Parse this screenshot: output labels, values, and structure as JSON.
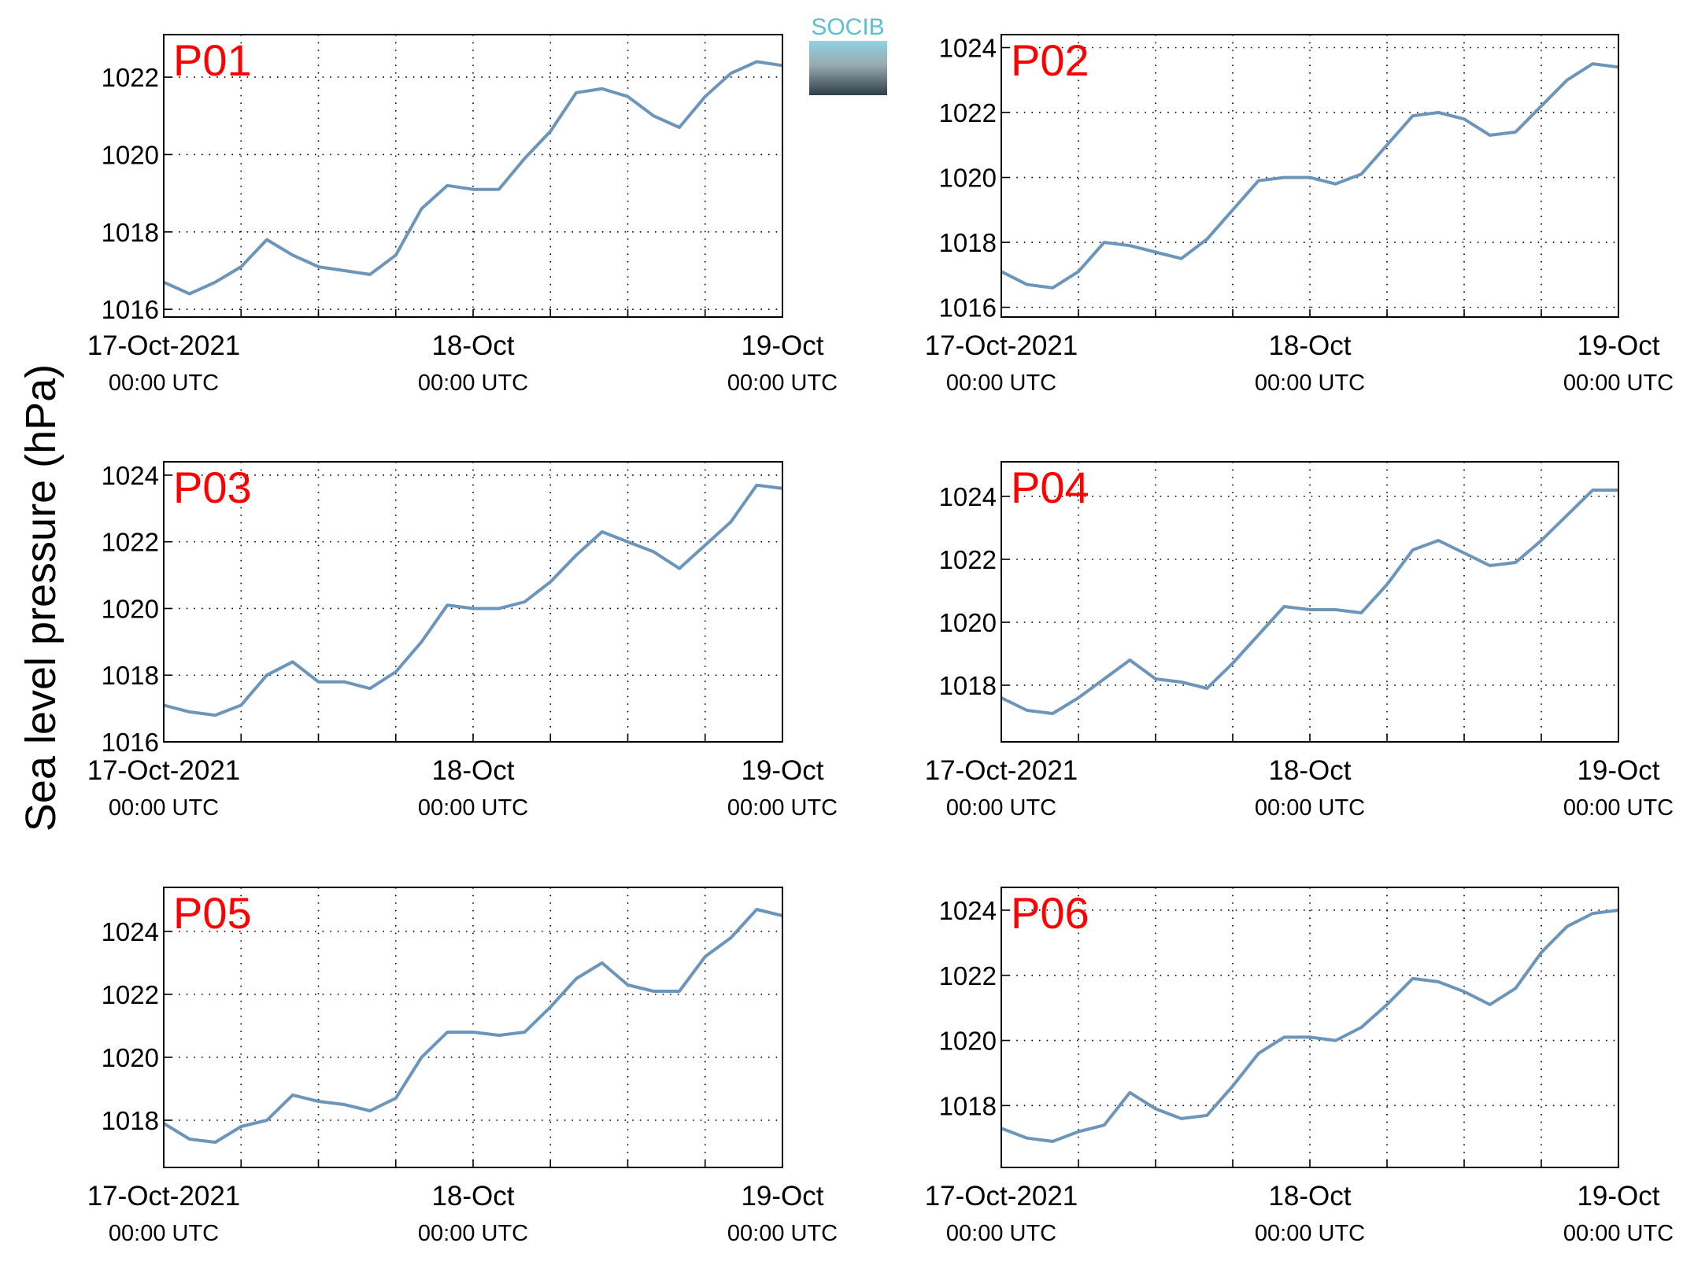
{
  "ylabel": "Sea level pressure (hPa)",
  "logo": "SOCIB",
  "chart_data": [
    {
      "type": "line",
      "title": "P01",
      "color": "#6b95ba",
      "grid": true,
      "x": [
        "2021-10-17T00:00",
        "2021-10-17T02:00",
        "2021-10-17T04:00",
        "2021-10-17T06:00",
        "2021-10-17T08:00",
        "2021-10-17T10:00",
        "2021-10-17T12:00",
        "2021-10-17T14:00",
        "2021-10-17T16:00",
        "2021-10-17T18:00",
        "2021-10-17T20:00",
        "2021-10-17T22:00",
        "2021-10-18T00:00",
        "2021-10-18T02:00",
        "2021-10-18T04:00",
        "2021-10-18T06:00",
        "2021-10-18T08:00",
        "2021-10-18T10:00",
        "2021-10-18T12:00",
        "2021-10-18T14:00",
        "2021-10-18T16:00",
        "2021-10-18T18:00",
        "2021-10-18T20:00",
        "2021-10-18T22:00",
        "2021-10-19T00:00"
      ],
      "values": [
        1016.7,
        1016.4,
        1016.7,
        1017.1,
        1017.8,
        1017.4,
        1017.1,
        1017.0,
        1016.9,
        1017.4,
        1018.6,
        1019.2,
        1019.1,
        1019.1,
        1019.9,
        1020.6,
        1021.6,
        1021.7,
        1021.5,
        1021.0,
        1020.7,
        1021.5,
        1022.1,
        1022.4,
        1022.3
      ],
      "xlim": [
        "2021-10-17T00:00",
        "2021-10-19T00:00"
      ],
      "ylim": [
        1015.8,
        1023.1
      ],
      "yticks": [
        1016,
        1018,
        1020,
        1022
      ],
      "xticks": [
        {
          "value": "2021-10-17T00:00",
          "label": [
            "17-Oct-2021",
            "00:00 UTC"
          ]
        },
        {
          "value": "2021-10-17T06:00",
          "label": null
        },
        {
          "value": "2021-10-17T12:00",
          "label": null
        },
        {
          "value": "2021-10-17T18:00",
          "label": null
        },
        {
          "value": "2021-10-18T00:00",
          "label": [
            "18-Oct",
            "00:00 UTC"
          ]
        },
        {
          "value": "2021-10-18T06:00",
          "label": null
        },
        {
          "value": "2021-10-18T12:00",
          "label": null
        },
        {
          "value": "2021-10-18T18:00",
          "label": null
        },
        {
          "value": "2021-10-19T00:00",
          "label": [
            "19-Oct",
            "00:00 UTC"
          ]
        }
      ]
    },
    {
      "type": "line",
      "title": "P02",
      "color": "#6b95ba",
      "grid": true,
      "x": [
        "2021-10-17T00:00",
        "2021-10-17T02:00",
        "2021-10-17T04:00",
        "2021-10-17T06:00",
        "2021-10-17T08:00",
        "2021-10-17T10:00",
        "2021-10-17T12:00",
        "2021-10-17T14:00",
        "2021-10-17T16:00",
        "2021-10-17T18:00",
        "2021-10-17T20:00",
        "2021-10-17T22:00",
        "2021-10-18T00:00",
        "2021-10-18T02:00",
        "2021-10-18T04:00",
        "2021-10-18T06:00",
        "2021-10-18T08:00",
        "2021-10-18T10:00",
        "2021-10-18T12:00",
        "2021-10-18T14:00",
        "2021-10-18T16:00",
        "2021-10-18T18:00",
        "2021-10-18T20:00",
        "2021-10-18T22:00",
        "2021-10-19T00:00"
      ],
      "values": [
        1017.1,
        1016.7,
        1016.6,
        1017.1,
        1018.0,
        1017.9,
        1017.7,
        1017.5,
        1018.1,
        1019.0,
        1019.9,
        1020.0,
        1020.0,
        1019.8,
        1020.1,
        1021.0,
        1021.9,
        1022.0,
        1021.8,
        1021.3,
        1021.4,
        1022.2,
        1023.0,
        1023.5,
        1023.4
      ],
      "xlim": [
        "2021-10-17T00:00",
        "2021-10-19T00:00"
      ],
      "ylim": [
        1015.7,
        1024.4
      ],
      "yticks": [
        1016,
        1018,
        1020,
        1022,
        1024
      ],
      "xticks": [
        {
          "value": "2021-10-17T00:00",
          "label": [
            "17-Oct-2021",
            "00:00 UTC"
          ]
        },
        {
          "value": "2021-10-17T06:00",
          "label": null
        },
        {
          "value": "2021-10-17T12:00",
          "label": null
        },
        {
          "value": "2021-10-17T18:00",
          "label": null
        },
        {
          "value": "2021-10-18T00:00",
          "label": [
            "18-Oct",
            "00:00 UTC"
          ]
        },
        {
          "value": "2021-10-18T06:00",
          "label": null
        },
        {
          "value": "2021-10-18T12:00",
          "label": null
        },
        {
          "value": "2021-10-18T18:00",
          "label": null
        },
        {
          "value": "2021-10-19T00:00",
          "label": [
            "19-Oct",
            "00:00 UTC"
          ]
        }
      ]
    },
    {
      "type": "line",
      "title": "P03",
      "color": "#6b95ba",
      "grid": true,
      "x": [
        "2021-10-17T00:00",
        "2021-10-17T02:00",
        "2021-10-17T04:00",
        "2021-10-17T06:00",
        "2021-10-17T08:00",
        "2021-10-17T10:00",
        "2021-10-17T12:00",
        "2021-10-17T14:00",
        "2021-10-17T16:00",
        "2021-10-17T18:00",
        "2021-10-17T20:00",
        "2021-10-17T22:00",
        "2021-10-18T00:00",
        "2021-10-18T02:00",
        "2021-10-18T04:00",
        "2021-10-18T06:00",
        "2021-10-18T08:00",
        "2021-10-18T10:00",
        "2021-10-18T12:00",
        "2021-10-18T14:00",
        "2021-10-18T16:00",
        "2021-10-18T18:00",
        "2021-10-18T20:00",
        "2021-10-18T22:00",
        "2021-10-19T00:00"
      ],
      "values": [
        1017.1,
        1016.9,
        1016.8,
        1017.1,
        1018.0,
        1018.4,
        1017.8,
        1017.8,
        1017.6,
        1018.1,
        1019.0,
        1020.1,
        1020.0,
        1020.0,
        1020.2,
        1020.8,
        1021.6,
        1022.3,
        1022.0,
        1021.7,
        1021.2,
        1021.9,
        1022.6,
        1023.7,
        1023.6
      ],
      "xlim": [
        "2021-10-17T00:00",
        "2021-10-19T00:00"
      ],
      "ylim": [
        1016,
        1024.4
      ],
      "yticks": [
        1016,
        1018,
        1020,
        1022,
        1024
      ],
      "xticks": [
        {
          "value": "2021-10-17T00:00",
          "label": [
            "17-Oct-2021",
            "00:00 UTC"
          ]
        },
        {
          "value": "2021-10-17T06:00",
          "label": null
        },
        {
          "value": "2021-10-17T12:00",
          "label": null
        },
        {
          "value": "2021-10-17T18:00",
          "label": null
        },
        {
          "value": "2021-10-18T00:00",
          "label": [
            "18-Oct",
            "00:00 UTC"
          ]
        },
        {
          "value": "2021-10-18T06:00",
          "label": null
        },
        {
          "value": "2021-10-18T12:00",
          "label": null
        },
        {
          "value": "2021-10-18T18:00",
          "label": null
        },
        {
          "value": "2021-10-19T00:00",
          "label": [
            "19-Oct",
            "00:00 UTC"
          ]
        }
      ]
    },
    {
      "type": "line",
      "title": "P04",
      "color": "#6b95ba",
      "grid": true,
      "x": [
        "2021-10-17T00:00",
        "2021-10-17T02:00",
        "2021-10-17T04:00",
        "2021-10-17T06:00",
        "2021-10-17T08:00",
        "2021-10-17T10:00",
        "2021-10-17T12:00",
        "2021-10-17T14:00",
        "2021-10-17T16:00",
        "2021-10-17T18:00",
        "2021-10-17T20:00",
        "2021-10-17T22:00",
        "2021-10-18T00:00",
        "2021-10-18T02:00",
        "2021-10-18T04:00",
        "2021-10-18T06:00",
        "2021-10-18T08:00",
        "2021-10-18T10:00",
        "2021-10-18T12:00",
        "2021-10-18T14:00",
        "2021-10-18T16:00",
        "2021-10-18T18:00",
        "2021-10-18T20:00",
        "2021-10-18T22:00",
        "2021-10-19T00:00"
      ],
      "values": [
        1017.6,
        1017.2,
        1017.1,
        1017.6,
        1018.2,
        1018.8,
        1018.2,
        1018.1,
        1017.9,
        1018.7,
        1019.6,
        1020.5,
        1020.4,
        1020.4,
        1020.3,
        1021.2,
        1022.3,
        1022.6,
        1022.2,
        1021.8,
        1021.9,
        1022.6,
        1023.4,
        1024.2,
        1024.2
      ],
      "xlim": [
        "2021-10-17T00:00",
        "2021-10-19T00:00"
      ],
      "ylim": [
        1016.2,
        1025.1
      ],
      "yticks": [
        1018,
        1020,
        1022,
        1024
      ],
      "xticks": [
        {
          "value": "2021-10-17T00:00",
          "label": [
            "17-Oct-2021",
            "00:00 UTC"
          ]
        },
        {
          "value": "2021-10-17T06:00",
          "label": null
        },
        {
          "value": "2021-10-17T12:00",
          "label": null
        },
        {
          "value": "2021-10-17T18:00",
          "label": null
        },
        {
          "value": "2021-10-18T00:00",
          "label": [
            "18-Oct",
            "00:00 UTC"
          ]
        },
        {
          "value": "2021-10-18T06:00",
          "label": null
        },
        {
          "value": "2021-10-18T12:00",
          "label": null
        },
        {
          "value": "2021-10-18T18:00",
          "label": null
        },
        {
          "value": "2021-10-19T00:00",
          "label": [
            "19-Oct",
            "00:00 UTC"
          ]
        }
      ]
    },
    {
      "type": "line",
      "title": "P05",
      "color": "#6b95ba",
      "grid": true,
      "x": [
        "2021-10-17T00:00",
        "2021-10-17T02:00",
        "2021-10-17T04:00",
        "2021-10-17T06:00",
        "2021-10-17T08:00",
        "2021-10-17T10:00",
        "2021-10-17T12:00",
        "2021-10-17T14:00",
        "2021-10-17T16:00",
        "2021-10-17T18:00",
        "2021-10-17T20:00",
        "2021-10-17T22:00",
        "2021-10-18T00:00",
        "2021-10-18T02:00",
        "2021-10-18T04:00",
        "2021-10-18T06:00",
        "2021-10-18T08:00",
        "2021-10-18T10:00",
        "2021-10-18T12:00",
        "2021-10-18T14:00",
        "2021-10-18T16:00",
        "2021-10-18T18:00",
        "2021-10-18T20:00",
        "2021-10-18T22:00",
        "2021-10-19T00:00"
      ],
      "values": [
        1017.9,
        1017.4,
        1017.3,
        1017.8,
        1018.0,
        1018.8,
        1018.6,
        1018.5,
        1018.3,
        1018.7,
        1020.0,
        1020.8,
        1020.8,
        1020.7,
        1020.8,
        1021.6,
        1022.5,
        1023.0,
        1022.3,
        1022.1,
        1022.1,
        1023.2,
        1023.8,
        1024.7,
        1024.5
      ],
      "xlim": [
        "2021-10-17T00:00",
        "2021-10-19T00:00"
      ],
      "ylim": [
        1016.5,
        1025.4
      ],
      "yticks": [
        1018,
        1020,
        1022,
        1024
      ],
      "xticks": [
        {
          "value": "2021-10-17T00:00",
          "label": [
            "17-Oct-2021",
            "00:00 UTC"
          ]
        },
        {
          "value": "2021-10-17T06:00",
          "label": null
        },
        {
          "value": "2021-10-17T12:00",
          "label": null
        },
        {
          "value": "2021-10-17T18:00",
          "label": null
        },
        {
          "value": "2021-10-18T00:00",
          "label": [
            "18-Oct",
            "00:00 UTC"
          ]
        },
        {
          "value": "2021-10-18T06:00",
          "label": null
        },
        {
          "value": "2021-10-18T12:00",
          "label": null
        },
        {
          "value": "2021-10-18T18:00",
          "label": null
        },
        {
          "value": "2021-10-19T00:00",
          "label": [
            "19-Oct",
            "00:00 UTC"
          ]
        }
      ]
    },
    {
      "type": "line",
      "title": "P06",
      "color": "#6b95ba",
      "grid": true,
      "x": [
        "2021-10-17T00:00",
        "2021-10-17T02:00",
        "2021-10-17T04:00",
        "2021-10-17T06:00",
        "2021-10-17T08:00",
        "2021-10-17T10:00",
        "2021-10-17T12:00",
        "2021-10-17T14:00",
        "2021-10-17T16:00",
        "2021-10-17T18:00",
        "2021-10-17T20:00",
        "2021-10-17T22:00",
        "2021-10-18T00:00",
        "2021-10-18T02:00",
        "2021-10-18T04:00",
        "2021-10-18T06:00",
        "2021-10-18T08:00",
        "2021-10-18T10:00",
        "2021-10-18T12:00",
        "2021-10-18T14:00",
        "2021-10-18T16:00",
        "2021-10-18T18:00",
        "2021-10-18T20:00",
        "2021-10-18T22:00",
        "2021-10-19T00:00"
      ],
      "values": [
        1017.3,
        1017.0,
        1016.9,
        1017.2,
        1017.4,
        1018.4,
        1017.9,
        1017.6,
        1017.7,
        1018.6,
        1019.6,
        1020.1,
        1020.1,
        1020.0,
        1020.4,
        1021.1,
        1021.9,
        1021.8,
        1021.5,
        1021.1,
        1021.6,
        1022.7,
        1023.5,
        1023.9,
        1024.0
      ],
      "xlim": [
        "2021-10-17T00:00",
        "2021-10-19T00:00"
      ],
      "ylim": [
        1016.1,
        1024.7
      ],
      "yticks": [
        1018,
        1020,
        1022,
        1024
      ],
      "xticks": [
        {
          "value": "2021-10-17T00:00",
          "label": [
            "17-Oct-2021",
            "00:00 UTC"
          ]
        },
        {
          "value": "2021-10-17T06:00",
          "label": null
        },
        {
          "value": "2021-10-17T12:00",
          "label": null
        },
        {
          "value": "2021-10-17T18:00",
          "label": null
        },
        {
          "value": "2021-10-18T00:00",
          "label": [
            "18-Oct",
            "00:00 UTC"
          ]
        },
        {
          "value": "2021-10-18T06:00",
          "label": null
        },
        {
          "value": "2021-10-18T12:00",
          "label": null
        },
        {
          "value": "2021-10-18T18:00",
          "label": null
        },
        {
          "value": "2021-10-19T00:00",
          "label": [
            "19-Oct",
            "00:00 UTC"
          ]
        }
      ]
    }
  ]
}
